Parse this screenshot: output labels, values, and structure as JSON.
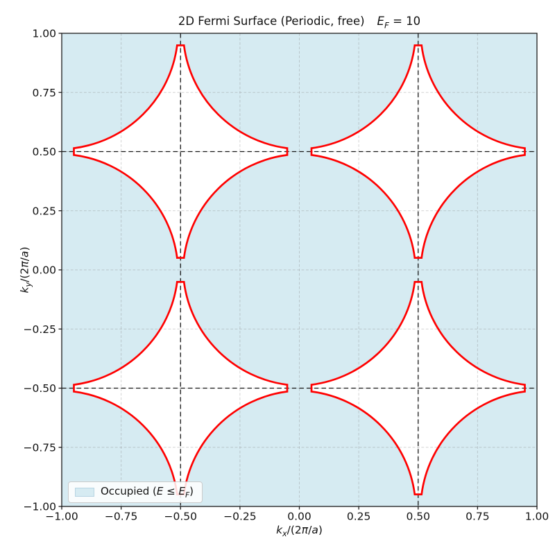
{
  "figure": {
    "title_text": "2D Fermi Surface (Periodic, free)",
    "title_math_var": "E",
    "title_math_sub": "F",
    "title_math_rest": " = 10"
  },
  "axes": {
    "x_label": {
      "var": "k",
      "sub": "x",
      "open": "/(2",
      "pi": "π",
      "slash": "/",
      "a": "a",
      "close": ")"
    },
    "y_label": {
      "var": "k",
      "sub": "y",
      "open": "/(2",
      "pi": "π",
      "slash": "/",
      "a": "a",
      "close": ")"
    },
    "x_tick_labels": [
      "−1.00",
      "−0.75",
      "−0.50",
      "−0.25",
      "0.00",
      "0.25",
      "0.50",
      "0.75",
      "1.00"
    ],
    "y_tick_labels": [
      "1.00",
      "0.75",
      "0.50",
      "0.25",
      "0.00",
      "−0.25",
      "−0.50",
      "−0.75",
      "−1.00"
    ]
  },
  "legend": {
    "prefix": "Occupied (",
    "var1": "E",
    "op": " ≤ ",
    "var2": "E",
    "sub2": "F",
    "suffix": ")",
    "swatch_color": "#d6ebf2"
  },
  "chart_data": {
    "type": "area",
    "description": "2D free-electron Fermi surface in periodic (repeated) zone scheme. Occupied region (E <= E_F) fills the plane except four star-shaped unoccupied pockets centered at half-integer points; pocket walls are red arcs of Fermi circles of reduced radius ~0.503 centered on reciprocal lattice points, with small flat truncated tips.",
    "title": "2D Fermi Surface (Periodic, free)  E_F = 10",
    "fermi_energy": 10,
    "xlabel": "k_x/(2π/a)",
    "ylabel": "k_y/(2π/a)",
    "xlim": [
      -1,
      1
    ],
    "ylim": [
      -1,
      1
    ],
    "x_ticks": [
      -1,
      -0.75,
      -0.5,
      -0.25,
      0,
      0.25,
      0.5,
      0.75,
      1
    ],
    "y_ticks": [
      -1,
      -0.75,
      -0.5,
      -0.25,
      0,
      0.25,
      0.5,
      0.75,
      1
    ],
    "grid_step": 0.25,
    "grid_on": true,
    "legend_position": "lower left",
    "unoccupied_star_centers": [
      [
        -0.5,
        0.5
      ],
      [
        0.5,
        0.5
      ],
      [
        -0.5,
        -0.5
      ],
      [
        0.5,
        -0.5
      ]
    ],
    "fermi_circle_centers": [
      [
        -1,
        -1
      ],
      [
        0,
        -1
      ],
      [
        1,
        -1
      ],
      [
        -1,
        0
      ],
      [
        0,
        0
      ],
      [
        1,
        0
      ],
      [
        -1,
        1
      ],
      [
        0,
        1
      ],
      [
        1,
        1
      ]
    ],
    "fermi_arc_radius": 0.5033,
    "star_tip_distance": 0.449,
    "star_tip_cap_halfwidth": 0.0145,
    "zone_boundary_x": [
      -0.5,
      0.5
    ],
    "zone_boundary_y": [
      -0.5,
      0.5
    ]
  },
  "style": {
    "occupied_fill": "#d6ebf2",
    "unoccupied_fill": "#ffffff",
    "contour_color": "#ff0000",
    "contour_width": 2.7,
    "zone_line_color": "#151515",
    "zone_line_dash": "6.5 4.2",
    "zone_line_width": 1.3,
    "grid_color": "#8c8c8c",
    "grid_opacity": 0.38,
    "grid_dash": "3.8 2.6",
    "grid_width": 1,
    "spine_color": "#1a1a1a",
    "spine_width": 1.3,
    "tick_length": 4.5,
    "tick_font_size": 15.5
  }
}
